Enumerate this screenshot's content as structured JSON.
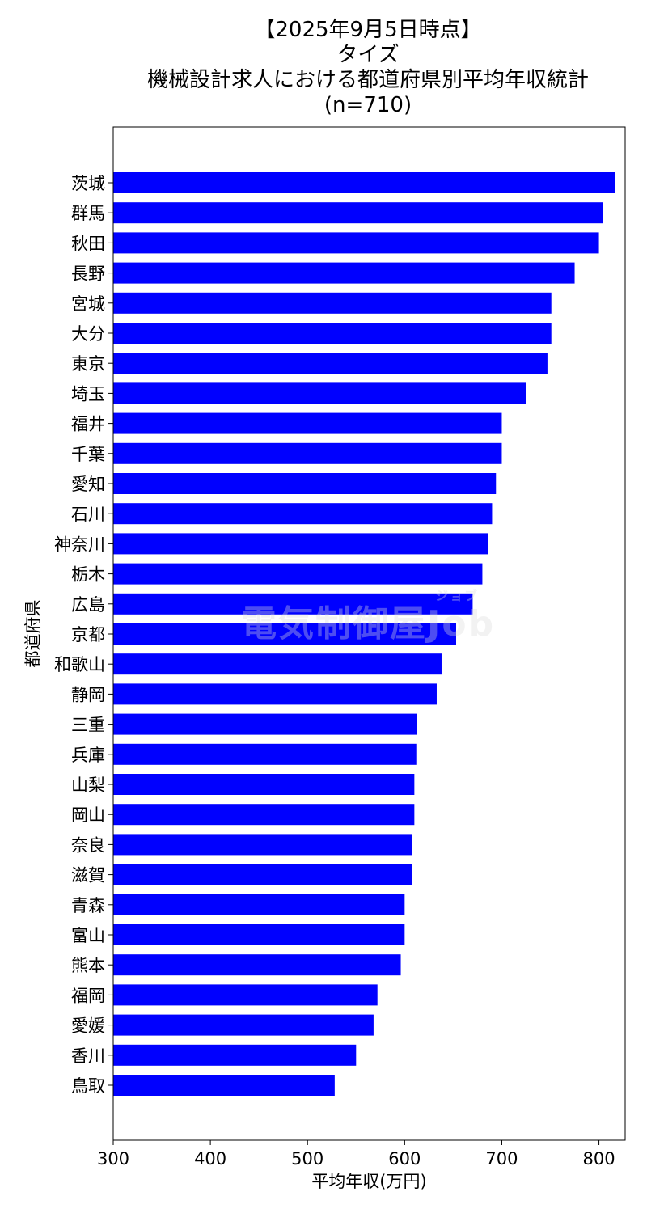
{
  "title": {
    "line1": "【2025年9月5日時点】",
    "line2": "タイズ",
    "line3": "機械設計求人における都道府県別平均年収統計",
    "line4": "(n=710)"
  },
  "watermark": {
    "main": "電気制御屋Job",
    "ruby": "ジョブ"
  },
  "chart_data": {
    "type": "bar",
    "orientation": "horizontal",
    "xlabel": "平均年収(万円)",
    "ylabel": "都道府県",
    "xlim": [
      300,
      827
    ],
    "xticks": [
      300,
      400,
      500,
      600,
      700,
      800
    ],
    "bar_color": "#0000ff",
    "grid": false,
    "categories": [
      "茨城",
      "群馬",
      "秋田",
      "長野",
      "宮城",
      "大分",
      "東京",
      "埼玉",
      "福井",
      "千葉",
      "愛知",
      "石川",
      "神奈川",
      "栃木",
      "広島",
      "京都",
      "和歌山",
      "静岡",
      "三重",
      "兵庫",
      "山梨",
      "岡山",
      "奈良",
      "滋賀",
      "青森",
      "富山",
      "熊本",
      "福岡",
      "愛媛",
      "香川",
      "鳥取"
    ],
    "values": [
      817,
      804,
      800,
      775,
      751,
      751,
      747,
      725,
      700,
      700,
      694,
      690,
      686,
      680,
      670,
      653,
      638,
      633,
      613,
      612,
      610,
      610,
      608,
      608,
      600,
      600,
      596,
      572,
      568,
      550,
      528
    ]
  }
}
